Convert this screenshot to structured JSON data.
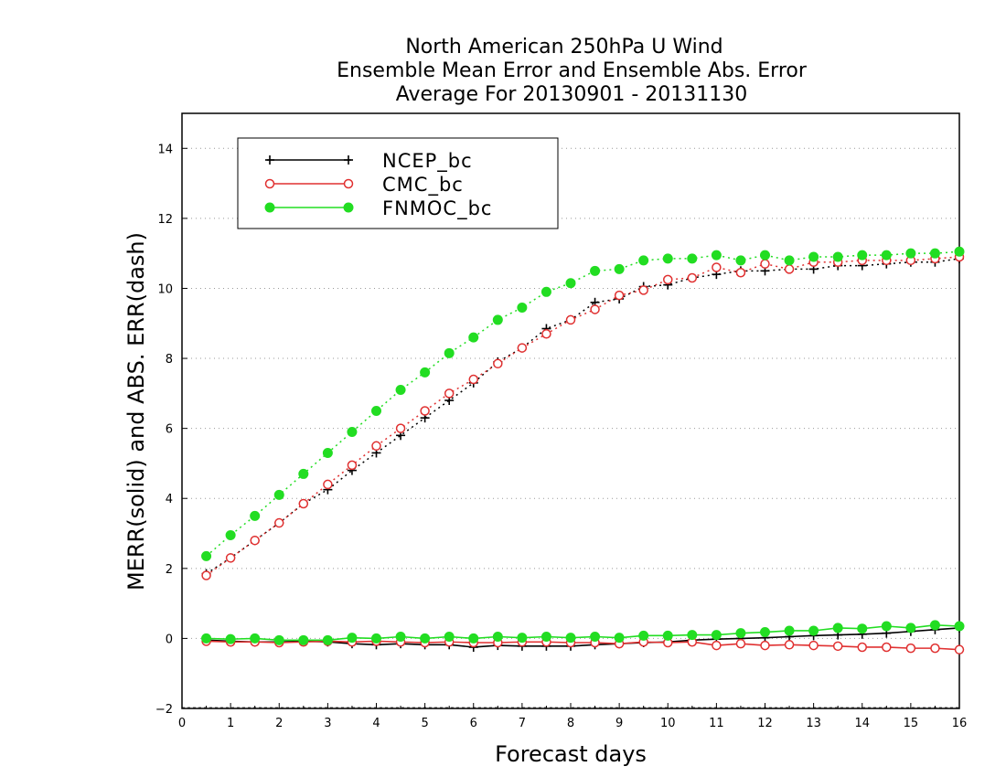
{
  "chart_data": {
    "type": "line",
    "title": [
      "North American 250hPa U Wind",
      "Ensemble Mean Error and Ensemble Abs. Error",
      "Average For 20130901 - 20131130"
    ],
    "xlabel": "Forecast days",
    "ylabel": "MERR(solid) and ABS. ERR(dash)",
    "xlim": [
      0,
      16
    ],
    "ylim": [
      -2,
      15
    ],
    "xticks": [
      0,
      1,
      2,
      3,
      4,
      5,
      6,
      7,
      8,
      9,
      10,
      11,
      12,
      13,
      14,
      15,
      16
    ],
    "yticks": [
      -2,
      0,
      2,
      4,
      6,
      8,
      10,
      12,
      14
    ],
    "grid": "horizontal dotted",
    "legend_position": "top-left",
    "x": [
      0.5,
      1,
      1.5,
      2,
      2.5,
      3,
      3.5,
      4,
      4.5,
      5,
      5.5,
      6,
      6.5,
      7,
      7.5,
      8,
      8.5,
      9,
      9.5,
      10,
      10.5,
      11,
      11.5,
      12,
      12.5,
      13,
      13.5,
      14,
      14.5,
      15,
      15.5,
      16
    ],
    "series": [
      {
        "name": "NCEP_bc",
        "color": "#000000",
        "marker": "plus",
        "merr": [
          -0.05,
          -0.08,
          -0.1,
          -0.1,
          -0.08,
          -0.1,
          -0.15,
          -0.18,
          -0.15,
          -0.18,
          -0.18,
          -0.25,
          -0.2,
          -0.22,
          -0.22,
          -0.22,
          -0.18,
          -0.15,
          -0.12,
          -0.1,
          -0.05,
          -0.02,
          0.0,
          0.02,
          0.05,
          0.08,
          0.1,
          0.12,
          0.15,
          0.2,
          0.25,
          0.3
        ],
        "abs_err": [
          1.85,
          2.3,
          2.8,
          3.3,
          3.85,
          4.25,
          4.8,
          5.3,
          5.8,
          6.3,
          6.8,
          7.3,
          7.9,
          8.3,
          8.85,
          9.1,
          9.6,
          9.7,
          10.05,
          10.1,
          10.3,
          10.4,
          10.5,
          10.5,
          10.55,
          10.55,
          10.65,
          10.65,
          10.7,
          10.75,
          10.75,
          10.85
        ]
      },
      {
        "name": "CMC_bc",
        "color": "#e03030",
        "marker": "open-circle",
        "merr": [
          -0.08,
          -0.1,
          -0.1,
          -0.12,
          -0.1,
          -0.08,
          -0.1,
          -0.08,
          -0.1,
          -0.12,
          -0.1,
          -0.12,
          -0.12,
          -0.1,
          -0.1,
          -0.12,
          -0.12,
          -0.15,
          -0.1,
          -0.12,
          -0.1,
          -0.2,
          -0.15,
          -0.2,
          -0.18,
          -0.2,
          -0.22,
          -0.25,
          -0.25,
          -0.28,
          -0.28,
          -0.32
        ],
        "abs_err": [
          1.8,
          2.3,
          2.8,
          3.3,
          3.85,
          4.4,
          4.95,
          5.5,
          6.0,
          6.5,
          7.0,
          7.4,
          7.85,
          8.3,
          8.7,
          9.1,
          9.4,
          9.8,
          9.95,
          10.25,
          10.3,
          10.6,
          10.45,
          10.7,
          10.55,
          10.75,
          10.75,
          10.8,
          10.8,
          10.8,
          10.85,
          10.9
        ]
      },
      {
        "name": "FNMOC_bc",
        "color": "#22dd22",
        "marker": "filled-circle",
        "merr": [
          0.0,
          -0.02,
          0.0,
          -0.05,
          -0.05,
          -0.05,
          0.02,
          0.0,
          0.05,
          0.0,
          0.05,
          0.0,
          0.05,
          0.02,
          0.05,
          0.02,
          0.05,
          0.02,
          0.08,
          0.08,
          0.1,
          0.1,
          0.15,
          0.18,
          0.22,
          0.22,
          0.3,
          0.28,
          0.35,
          0.3,
          0.38,
          0.35
        ],
        "abs_err": [
          2.35,
          2.95,
          3.5,
          4.1,
          4.7,
          5.3,
          5.9,
          6.5,
          7.1,
          7.6,
          8.15,
          8.6,
          9.1,
          9.45,
          9.9,
          10.15,
          10.5,
          10.55,
          10.8,
          10.85,
          10.85,
          10.95,
          10.8,
          10.95,
          10.8,
          10.9,
          10.9,
          10.95,
          10.95,
          11.0,
          11.0,
          11.05
        ]
      }
    ]
  }
}
